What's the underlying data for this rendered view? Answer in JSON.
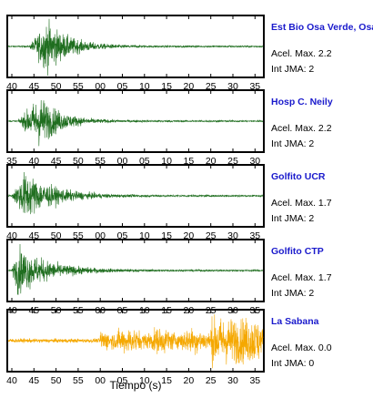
{
  "chart_data": {
    "type": "line",
    "xlabel": "Tiempo (s)",
    "panels": [
      {
        "station": "Est Bio Osa Verde, Osa",
        "accel_label": "Acel. Max. 2.2",
        "jma_label": "Int JMA: 2",
        "color": "#1f6e1f",
        "xticks": [
          "40",
          "45",
          "50",
          "55",
          "00",
          "05",
          "10",
          "15",
          "20",
          "25",
          "30",
          "35"
        ],
        "signal": {
          "onset_tick": 0.8,
          "peak_tick": 1.6,
          "decay_ticks": 2.2,
          "peak_amplitude": 0.9,
          "end_tick": 12.5
        }
      },
      {
        "station": "Hosp C. Neily",
        "accel_label": "Acel. Max. 2.2",
        "jma_label": "Int JMA: 2",
        "color": "#1f6e1f",
        "xticks": [
          "35",
          "40",
          "45",
          "50",
          "55",
          "00",
          "05",
          "10",
          "15",
          "20",
          "25",
          "30"
        ],
        "signal": {
          "onset_tick": 0.3,
          "peak_tick": 1.3,
          "decay_ticks": 2.0,
          "peak_amplitude": 0.9,
          "end_tick": 12.5
        }
      },
      {
        "station": "Golfito UCR",
        "accel_label": "Acel. Max. 1.7",
        "jma_label": "Int JMA: 2",
        "color": "#1f6e1f",
        "xticks": [
          "40",
          "45",
          "50",
          "55",
          "00",
          "05",
          "10",
          "15",
          "20",
          "25",
          "30",
          "35"
        ],
        "signal": {
          "onset_tick": 0.0,
          "peak_tick": 0.6,
          "decay_ticks": 2.8,
          "peak_amplitude": 0.85,
          "end_tick": 12.5
        }
      },
      {
        "station": "Golfito CTP",
        "accel_label": "Acel. Max. 1.7",
        "jma_label": "Int JMA: 2",
        "color": "#1f6e1f",
        "xticks": [
          "40",
          "45",
          "50",
          "55",
          "00",
          "05",
          "10",
          "15",
          "20",
          "25",
          "30",
          "35"
        ],
        "signal": {
          "onset_tick": 0.0,
          "peak_tick": 0.3,
          "decay_ticks": 3.0,
          "peak_amplitude": 0.85,
          "end_tick": 12.5
        }
      },
      {
        "station": "La Sabana",
        "accel_label": "Acel. Max. 0.0",
        "jma_label": "Int JMA: 0",
        "color": "#f5a800",
        "xticks": [
          "40",
          "45",
          "50",
          "55",
          "00",
          "05",
          "10",
          "15",
          "20",
          "25",
          "30",
          "35"
        ],
        "signal": {
          "noise_level": 0.07,
          "burst_start_tick": 4.0,
          "burst_level": 0.45,
          "second_burst_start_tick": 9.0,
          "second_burst_level": 0.8,
          "end_tick": 12.5
        }
      }
    ]
  },
  "colors": {
    "station_name": "#1a1acc",
    "label_text": "#000000",
    "frame": "#000000"
  }
}
